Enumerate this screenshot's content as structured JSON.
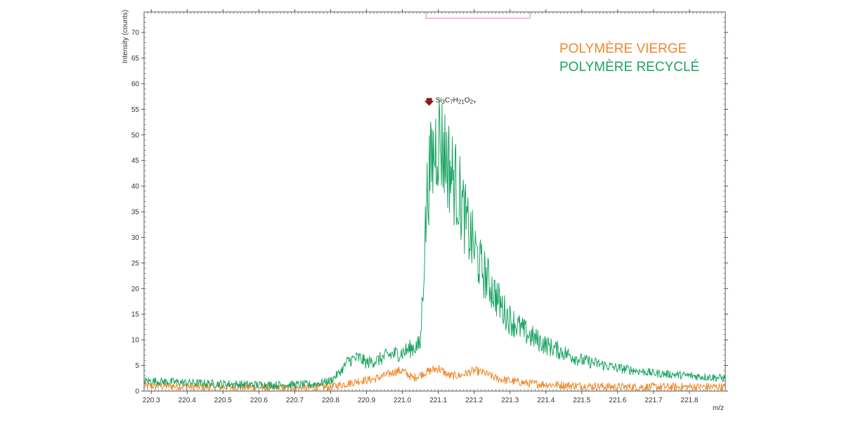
{
  "chart_data": {
    "type": "line",
    "xlabel": "m/z",
    "ylabel": "Intensity (counts)",
    "xlim": [
      220.28,
      221.9
    ],
    "ylim": [
      0,
      74
    ],
    "x_ticks": [
      "220.3",
      "220.4",
      "220.5",
      "220.6",
      "220.7",
      "220.8",
      "220.9",
      "221.0",
      "221.1",
      "221.2",
      "221.3",
      "221.4",
      "221.5",
      "221.6",
      "221.7",
      "221.8"
    ],
    "y_ticks": [
      "0",
      "5",
      "10",
      "15",
      "20",
      "25",
      "30",
      "35",
      "40",
      "45",
      "50",
      "55",
      "60",
      "65",
      "70"
    ],
    "annotation": {
      "text": "Si3C7H21O2+",
      "x": 221.1,
      "y": 55
    },
    "series": [
      {
        "name": "POLYMÈRE VIERGE",
        "color": "#f0882a",
        "x": [
          220.28,
          220.35,
          220.45,
          220.55,
          220.65,
          220.75,
          220.8,
          220.85,
          220.88,
          220.92,
          220.95,
          220.98,
          221.0,
          221.03,
          221.06,
          221.1,
          221.13,
          221.16,
          221.2,
          221.23,
          221.26,
          221.3,
          221.35,
          221.4,
          221.5,
          221.6,
          221.7,
          221.8,
          221.9
        ],
        "values": [
          1,
          1,
          0.8,
          0.8,
          0.6,
          0.6,
          0.8,
          1.5,
          2,
          2.3,
          3,
          3.8,
          4,
          2.5,
          3.5,
          4.5,
          3,
          3,
          4,
          3.5,
          2.5,
          2,
          1.5,
          1.3,
          1,
          0.8,
          0.8,
          0.8,
          0.8
        ]
      },
      {
        "name": "POLYMÈRE RECYCLÉ",
        "color": "#1aa463",
        "x": [
          220.28,
          220.35,
          220.45,
          220.55,
          220.65,
          220.75,
          220.8,
          220.83,
          220.85,
          220.88,
          220.9,
          220.93,
          220.96,
          221.0,
          221.03,
          221.05,
          221.06,
          221.07,
          221.08,
          221.09,
          221.1,
          221.12,
          221.14,
          221.16,
          221.18,
          221.2,
          221.22,
          221.25,
          221.28,
          221.3,
          221.35,
          221.4,
          221.45,
          221.5,
          221.6,
          221.7,
          221.8,
          221.9
        ],
        "values": [
          2,
          1.8,
          1.5,
          1.3,
          1.2,
          1.3,
          2,
          4,
          6,
          6.5,
          5.5,
          6,
          7,
          7.5,
          8.5,
          9,
          25,
          40,
          44,
          47,
          50,
          46,
          42,
          38,
          32,
          28,
          24,
          20,
          16,
          14,
          11,
          9,
          7.5,
          6,
          4.5,
          3.5,
          3,
          2.5
        ]
      }
    ]
  },
  "legend": {
    "vierge": {
      "label": "POLYMÈRE VIERGE",
      "color": "#f0882a"
    },
    "recycle": {
      "label": "POLYMÈRE RECYCLÉ",
      "color": "#1aa463"
    }
  },
  "annotation_color": "#8b1a1a",
  "highlight_color": "#e377d6"
}
